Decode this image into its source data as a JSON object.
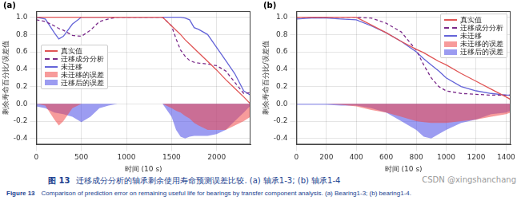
{
  "caption_zh": {
    "label": "图 13",
    "text": "迁移成分分析的轴承剩余使用寿命预测误差比较. (a) 轴承1-3; (b) 轴承1-4"
  },
  "caption_en": {
    "label": "Figure 13",
    "text": "Comparison of prediction error on remaining useful life for bearings by transfer component analysis. (a) Bearing1-3; (b) bearing1-4."
  },
  "watermark": "CSDN @xingshanchang",
  "chart_data": [
    {
      "type": "line",
      "label": "(a)",
      "x_label": "时间 (10 s)",
      "y_label": "剩余寿命百分比/误差值",
      "x": [
        0,
        100,
        200,
        250,
        300,
        400,
        500,
        600,
        700,
        800,
        900,
        1000,
        1200,
        1400,
        1500,
        1550,
        1600,
        1650,
        1700,
        1750,
        1800,
        1900,
        2000,
        2100,
        2200,
        2300,
        2375
      ],
      "xlim": [
        0,
        2375
      ],
      "xticks": [
        0,
        500,
        1000,
        1500,
        2000
      ],
      "ylim": [
        -0.47,
        1.07
      ],
      "yticks": [
        -0.4,
        -0.2,
        {
          "value": 0,
          "label": "0.0"
        },
        0.2,
        0.4,
        0.6,
        0.8,
        {
          "value": 1,
          "label": "1.0"
        }
      ],
      "grid": true,
      "legend": "upper left",
      "series": [
        {
          "name": "真实值",
          "type": "line",
          "color": "#e05555",
          "line_style": "solid",
          "values": [
            1,
            1,
            1,
            1,
            1,
            1,
            1,
            1,
            1,
            1,
            1,
            1,
            1,
            1,
            0.9,
            0.85,
            0.8,
            0.74,
            0.69,
            0.64,
            0.59,
            0.49,
            0.39,
            0.28,
            0.18,
            0.08,
            0
          ]
        },
        {
          "name": "迁移成分分析",
          "type": "line",
          "color": "#7a2a8a",
          "line_style": "dashed",
          "values": [
            0.97,
            0.95,
            0.9,
            0.87,
            0.85,
            0.79,
            0.78,
            0.85,
            0.95,
            0.98,
            1,
            1,
            1,
            1,
            0.9,
            0.75,
            0.62,
            0.55,
            0.5,
            0.48,
            0.47,
            0.46,
            0.44,
            0.38,
            0.25,
            0.12,
            0.13
          ]
        },
        {
          "name": "未迁移",
          "type": "line",
          "color": "#6464d8",
          "line_style": "solid",
          "values": [
            1,
            0.98,
            0.82,
            0.75,
            0.78,
            0.92,
            1,
            1,
            1,
            1,
            1,
            1,
            1,
            1,
            1,
            1,
            1,
            0.99,
            0.97,
            0.88,
            0.86,
            0.8,
            0.65,
            0.5,
            0.35,
            0.15,
            0.1
          ]
        },
        {
          "name": "未迁移的误差",
          "type": "area",
          "color": "#f04848",
          "values": [
            0,
            -0.02,
            -0.18,
            -0.25,
            -0.2,
            -0.05,
            0,
            0,
            0,
            0,
            0,
            0,
            0,
            0,
            -0.05,
            -0.08,
            -0.1,
            -0.14,
            -0.17,
            -0.22,
            -0.25,
            -0.3,
            -0.3,
            -0.3,
            -0.25,
            -0.2,
            -0.15
          ]
        },
        {
          "name": "迁移后的误差",
          "type": "area",
          "color": "#4a4ae6",
          "values": [
            -0.03,
            -0.05,
            -0.1,
            -0.11,
            -0.12,
            -0.15,
            -0.21,
            -0.15,
            -0.05,
            -0.02,
            0,
            0,
            0,
            0,
            -0.15,
            -0.3,
            -0.38,
            -0.4,
            -0.38,
            -0.37,
            -0.37,
            -0.37,
            -0.35,
            -0.3,
            -0.2,
            -0.1,
            -0.02
          ]
        }
      ]
    },
    {
      "type": "line",
      "label": "(b)",
      "x_label": "时间 (10 s)",
      "y_label": "剩余寿命百分比/误差值",
      "x": [
        0,
        100,
        200,
        300,
        400,
        500,
        600,
        700,
        800,
        850,
        900,
        950,
        1000,
        1100,
        1200,
        1300,
        1400,
        1430
      ],
      "xlim": [
        0,
        1430
      ],
      "xticks": [
        0,
        200,
        400,
        600,
        800,
        1000,
        1200,
        1400
      ],
      "ylim": [
        -0.47,
        1.07
      ],
      "yticks": [
        -0.4,
        -0.2,
        {
          "value": 0,
          "label": "0.0"
        },
        0.2,
        0.4,
        0.6,
        0.8,
        {
          "value": 1,
          "label": "1.0"
        }
      ],
      "grid": true,
      "legend": "upper right",
      "series": [
        {
          "name": "真实值",
          "type": "line",
          "color": "#e05555",
          "line_style": "solid",
          "values": [
            1,
            1,
            1,
            1,
            1,
            0.91,
            0.82,
            0.72,
            0.63,
            0.59,
            0.54,
            0.49,
            0.45,
            0.35,
            0.26,
            0.17,
            0.08,
            0.05
          ]
        },
        {
          "name": "迁移成分分析",
          "type": "line",
          "color": "#7a2a8a",
          "line_style": "dashed",
          "values": [
            1,
            1,
            1,
            1,
            1,
            0.99,
            0.93,
            0.83,
            0.62,
            0.45,
            0.3,
            0.2,
            0.15,
            0.12,
            0.11,
            0.1,
            0.1,
            0.1
          ]
        },
        {
          "name": "未迁移",
          "type": "line",
          "color": "#6464d8",
          "line_style": "solid",
          "values": [
            0.98,
            0.99,
            0.99,
            0.98,
            0.97,
            0.9,
            0.82,
            0.72,
            0.6,
            0.52,
            0.45,
            0.38,
            0.3,
            0.2,
            0.15,
            0.12,
            0.1,
            0.1
          ]
        },
        {
          "name": "未迁移的误差",
          "type": "area",
          "color": "#f04848",
          "values": [
            0,
            0,
            0,
            -0.01,
            -0.03,
            -0.07,
            -0.1,
            -0.15,
            -0.2,
            -0.21,
            -0.22,
            -0.22,
            -0.22,
            -0.2,
            -0.18,
            -0.15,
            -0.12,
            -0.1
          ]
        },
        {
          "name": "迁移后的误差",
          "type": "area",
          "color": "#4a4ae6",
          "values": [
            -0.01,
            -0.01,
            -0.01,
            -0.02,
            -0.02,
            -0.05,
            -0.1,
            -0.2,
            -0.3,
            -0.38,
            -0.4,
            -0.35,
            -0.3,
            -0.22,
            -0.18,
            -0.12,
            -0.1,
            -0.08
          ]
        }
      ]
    }
  ]
}
